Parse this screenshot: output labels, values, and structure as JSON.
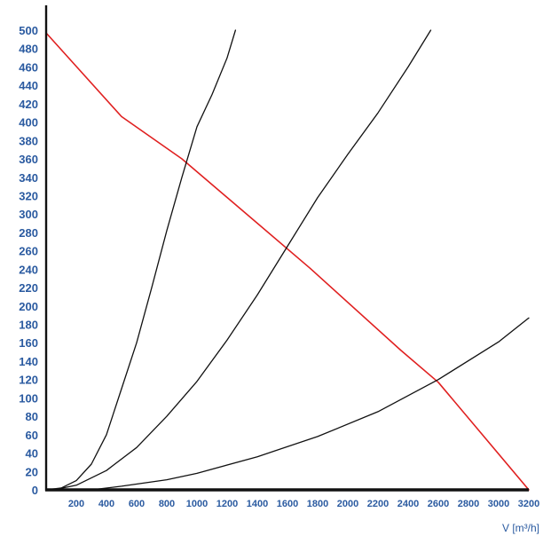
{
  "chart_data": {
    "type": "line",
    "xlim": [
      0,
      3200
    ],
    "ylim": [
      0,
      500
    ],
    "x_ticks": [
      200,
      400,
      600,
      800,
      1000,
      1200,
      1400,
      1600,
      1800,
      2000,
      2200,
      2400,
      2600,
      2800,
      3000,
      3200
    ],
    "y_ticks": [
      0,
      20,
      40,
      60,
      80,
      100,
      120,
      140,
      160,
      180,
      200,
      220,
      240,
      260,
      280,
      300,
      320,
      340,
      360,
      380,
      400,
      420,
      440,
      460,
      480,
      500
    ],
    "xlabel": "V [m³/h]",
    "ylabel": "",
    "grid": false,
    "series": [
      {
        "color": "#e02020",
        "points": [
          [
            0,
            497
          ],
          [
            500,
            406
          ],
          [
            900,
            360
          ],
          [
            1750,
            241
          ],
          [
            2350,
            152
          ],
          [
            2600,
            117
          ],
          [
            3200,
            0
          ]
        ]
      },
      {
        "color": "#111111",
        "points": [
          [
            0,
            0
          ],
          [
            100,
            2
          ],
          [
            200,
            10
          ],
          [
            300,
            28
          ],
          [
            400,
            60
          ],
          [
            500,
            110
          ],
          [
            600,
            160
          ],
          [
            700,
            220
          ],
          [
            800,
            282
          ],
          [
            900,
            340
          ],
          [
            1000,
            395
          ],
          [
            1100,
            430
          ],
          [
            1200,
            470
          ],
          [
            1255,
            500
          ]
        ]
      },
      {
        "color": "#111111",
        "points": [
          [
            50,
            0
          ],
          [
            200,
            5
          ],
          [
            400,
            21
          ],
          [
            600,
            46
          ],
          [
            800,
            80
          ],
          [
            1000,
            118
          ],
          [
            1200,
            163
          ],
          [
            1400,
            212
          ],
          [
            1600,
            265
          ],
          [
            1800,
            318
          ],
          [
            2000,
            365
          ],
          [
            2200,
            410
          ],
          [
            2400,
            460
          ],
          [
            2550,
            500
          ]
        ]
      },
      {
        "color": "#111111",
        "points": [
          [
            300,
            0
          ],
          [
            500,
            4
          ],
          [
            800,
            11
          ],
          [
            1000,
            18
          ],
          [
            1400,
            36
          ],
          [
            1800,
            58
          ],
          [
            2200,
            85
          ],
          [
            2600,
            120
          ],
          [
            3000,
            161
          ],
          [
            3200,
            187
          ]
        ]
      }
    ]
  }
}
